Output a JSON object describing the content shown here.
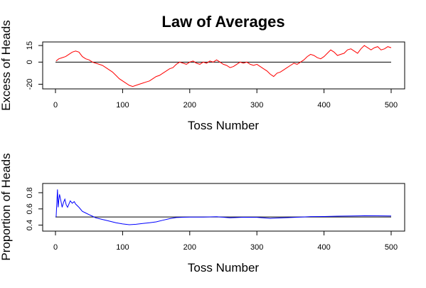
{
  "title": "Law of Averages",
  "chart_data": [
    {
      "type": "line",
      "xlabel": "Toss Number",
      "ylabel": "Excess of Heads",
      "xlim": [
        0,
        500
      ],
      "ylim": [
        -21,
        15
      ],
      "xticks": [
        0,
        100,
        200,
        300,
        400,
        500
      ],
      "yticks": [
        -20,
        0,
        15
      ],
      "reference_line": 0,
      "series": [
        {
          "color": "#ff0000",
          "points": [
            [
              1,
              1
            ],
            [
              5,
              3
            ],
            [
              10,
              4
            ],
            [
              15,
              5
            ],
            [
              20,
              7
            ],
            [
              25,
              9
            ],
            [
              30,
              10
            ],
            [
              35,
              9
            ],
            [
              40,
              5
            ],
            [
              45,
              3
            ],
            [
              50,
              2
            ],
            [
              55,
              0
            ],
            [
              60,
              -1
            ],
            [
              65,
              -2
            ],
            [
              70,
              -3
            ],
            [
              75,
              -5
            ],
            [
              80,
              -7
            ],
            [
              85,
              -9
            ],
            [
              90,
              -12
            ],
            [
              95,
              -15
            ],
            [
              100,
              -17
            ],
            [
              105,
              -19
            ],
            [
              110,
              -21
            ],
            [
              115,
              -22
            ],
            [
              120,
              -21
            ],
            [
              125,
              -20
            ],
            [
              130,
              -19
            ],
            [
              135,
              -18
            ],
            [
              140,
              -17
            ],
            [
              145,
              -15
            ],
            [
              150,
              -13
            ],
            [
              155,
              -12
            ],
            [
              160,
              -10
            ],
            [
              165,
              -8
            ],
            [
              170,
              -6
            ],
            [
              175,
              -5
            ],
            [
              180,
              -2
            ],
            [
              185,
              0
            ],
            [
              190,
              -1
            ],
            [
              195,
              -2
            ],
            [
              200,
              0
            ],
            [
              205,
              1
            ],
            [
              210,
              -1
            ],
            [
              215,
              -2
            ],
            [
              220,
              0
            ],
            [
              225,
              -1
            ],
            [
              230,
              1
            ],
            [
              235,
              0
            ],
            [
              240,
              2
            ],
            [
              245,
              0
            ],
            [
              250,
              -2
            ],
            [
              255,
              -3
            ],
            [
              260,
              -5
            ],
            [
              265,
              -4
            ],
            [
              270,
              -2
            ],
            [
              275,
              0
            ],
            [
              280,
              -1
            ],
            [
              285,
              0
            ],
            [
              290,
              -2
            ],
            [
              295,
              -3
            ],
            [
              300,
              -2
            ],
            [
              305,
              -4
            ],
            [
              310,
              -6
            ],
            [
              315,
              -8
            ],
            [
              320,
              -11
            ],
            [
              325,
              -13
            ],
            [
              330,
              -10
            ],
            [
              335,
              -9
            ],
            [
              340,
              -7
            ],
            [
              345,
              -5
            ],
            [
              350,
              -3
            ],
            [
              355,
              -1
            ],
            [
              360,
              -2
            ],
            [
              365,
              0
            ],
            [
              370,
              2
            ],
            [
              375,
              5
            ],
            [
              380,
              7
            ],
            [
              385,
              6
            ],
            [
              390,
              4
            ],
            [
              395,
              3
            ],
            [
              400,
              5
            ],
            [
              405,
              8
            ],
            [
              410,
              11
            ],
            [
              415,
              9
            ],
            [
              420,
              6
            ],
            [
              425,
              7
            ],
            [
              430,
              8
            ],
            [
              435,
              11
            ],
            [
              440,
              12
            ],
            [
              445,
              10
            ],
            [
              450,
              8
            ],
            [
              455,
              12
            ],
            [
              460,
              15
            ],
            [
              465,
              13
            ],
            [
              470,
              11
            ],
            [
              475,
              13
            ],
            [
              480,
              14
            ],
            [
              485,
              11
            ],
            [
              490,
              12
            ],
            [
              495,
              14
            ],
            [
              500,
              13
            ]
          ]
        }
      ]
    },
    {
      "type": "line",
      "xlabel": "Toss Number",
      "ylabel": "Proportion of Heads",
      "xlim": [
        0,
        500
      ],
      "ylim": [
        0.37,
        0.87
      ],
      "xticks": [
        0,
        100,
        200,
        300,
        400,
        500
      ],
      "yticks": [
        0.4,
        0.6,
        0.8
      ],
      "yticklabels": [
        "0.4",
        "0.6",
        "0.8"
      ],
      "reference_line": 0.5,
      "series": [
        {
          "color": "#0000ff",
          "points": [
            [
              1,
              0.5
            ],
            [
              2,
              0.67
            ],
            [
              3,
              0.84
            ],
            [
              4,
              0.62
            ],
            [
              5,
              0.71
            ],
            [
              6,
              0.78
            ],
            [
              8,
              0.7
            ],
            [
              10,
              0.62
            ],
            [
              12,
              0.68
            ],
            [
              14,
              0.72
            ],
            [
              16,
              0.65
            ],
            [
              18,
              0.62
            ],
            [
              20,
              0.66
            ],
            [
              22,
              0.7
            ],
            [
              25,
              0.67
            ],
            [
              28,
              0.69
            ],
            [
              30,
              0.66
            ],
            [
              35,
              0.62
            ],
            [
              40,
              0.57
            ],
            [
              45,
              0.55
            ],
            [
              50,
              0.53
            ],
            [
              55,
              0.51
            ],
            [
              60,
              0.49
            ],
            [
              65,
              0.48
            ],
            [
              70,
              0.47
            ],
            [
              80,
              0.45
            ],
            [
              90,
              0.43
            ],
            [
              100,
              0.415
            ],
            [
              110,
              0.405
            ],
            [
              120,
              0.41
            ],
            [
              130,
              0.42
            ],
            [
              140,
              0.43
            ],
            [
              150,
              0.44
            ],
            [
              160,
              0.46
            ],
            [
              170,
              0.48
            ],
            [
              180,
              0.494
            ],
            [
              200,
              0.5
            ],
            [
              220,
              0.5
            ],
            [
              240,
              0.503
            ],
            [
              260,
              0.49
            ],
            [
              280,
              0.497
            ],
            [
              300,
              0.496
            ],
            [
              320,
              0.483
            ],
            [
              340,
              0.49
            ],
            [
              360,
              0.497
            ],
            [
              380,
              0.505
            ],
            [
              400,
              0.506
            ],
            [
              420,
              0.51
            ],
            [
              440,
              0.512
            ],
            [
              460,
              0.516
            ],
            [
              480,
              0.515
            ],
            [
              500,
              0.513
            ]
          ]
        }
      ]
    }
  ]
}
